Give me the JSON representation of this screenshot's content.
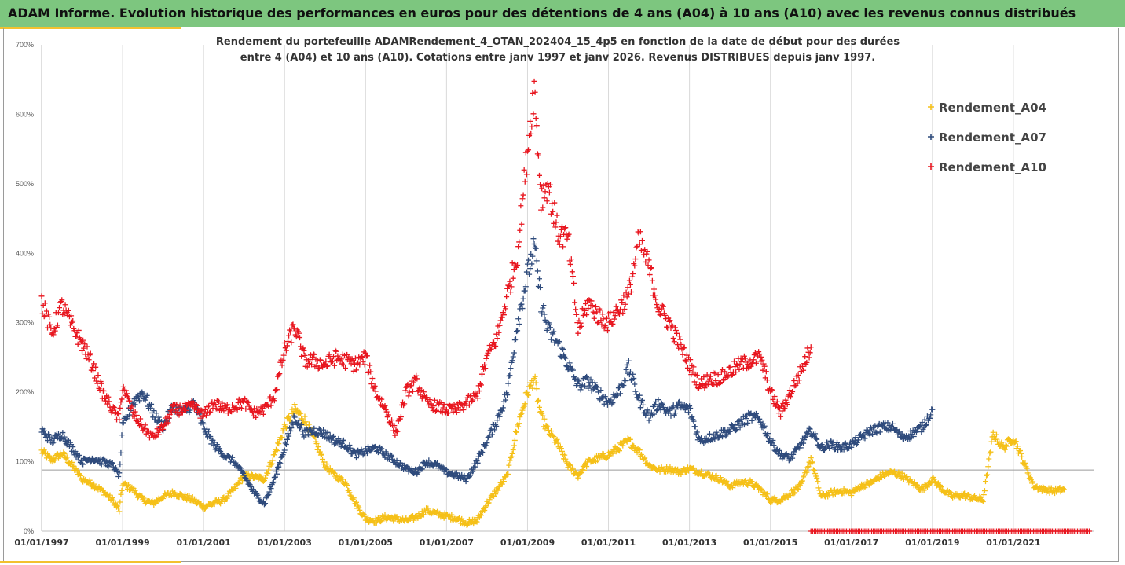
{
  "banner": {
    "title": "ADAM Informe. Evolution historique des performances en euros pour des détentions de 4 ans (A04) à 10 ans (A10) avec les revenus connus distribués"
  },
  "colors": {
    "banner": "#7dc67f",
    "accent": "#f2c12e",
    "A04": "#f5c018",
    "A07": "#2f4b7c",
    "A10": "#e8161f"
  },
  "chart_data": {
    "type": "scatter",
    "title_lines": [
      "Rendement du portefeuille ADAMRendement_4_OTAN_202404_15_4p5  en fonction de la date de début pour des durées",
      "entre 4 (A04) et 10 ans (A10). Cotations entre janv 1997 et janv 2026. Revenus DISTRIBUES depuis janv 1997."
    ],
    "xlabel": "",
    "ylabel": "",
    "x_range": [
      "01/01/1997",
      "01/01/2023"
    ],
    "x_ticks": [
      "01/01/1997",
      "01/01/1999",
      "01/01/2001",
      "01/01/2003",
      "01/01/2005",
      "01/01/2007",
      "01/01/2009",
      "01/01/2011",
      "01/01/2013",
      "01/01/2015",
      "01/01/2017",
      "01/01/2019",
      "01/01/2021"
    ],
    "y_ticks": [
      "0%",
      "100%",
      "200%",
      "300%",
      "400%",
      "500%",
      "600%",
      "700%"
    ],
    "ylim": [
      0,
      700
    ],
    "grid": "vertical",
    "legend_position": "top-right",
    "marker": "+",
    "series": [
      {
        "name": "Rendement_A04",
        "color": "#f5c018",
        "points": [
          [
            "1997-01",
            115
          ],
          [
            "1997-04",
            102
          ],
          [
            "1997-07",
            112
          ],
          [
            "1997-10",
            95
          ],
          [
            "1998-01",
            75
          ],
          [
            "1998-04",
            68
          ],
          [
            "1998-07",
            58
          ],
          [
            "1998-10",
            45
          ],
          [
            "1998-12",
            30
          ],
          [
            "1999-01",
            68
          ],
          [
            "1999-04",
            60
          ],
          [
            "1999-07",
            45
          ],
          [
            "1999-10",
            40
          ],
          [
            "2000-01",
            50
          ],
          [
            "2000-04",
            55
          ],
          [
            "2000-07",
            50
          ],
          [
            "2000-10",
            45
          ],
          [
            "2001-01",
            35
          ],
          [
            "2001-04",
            40
          ],
          [
            "2001-07",
            45
          ],
          [
            "2001-10",
            60
          ],
          [
            "2002-01",
            80
          ],
          [
            "2002-04",
            78
          ],
          [
            "2002-07",
            75
          ],
          [
            "2002-10",
            110
          ],
          [
            "2003-01",
            150
          ],
          [
            "2003-04",
            175
          ],
          [
            "2003-07",
            160
          ],
          [
            "2003-10",
            130
          ],
          [
            "2004-01",
            95
          ],
          [
            "2004-04",
            80
          ],
          [
            "2004-07",
            70
          ],
          [
            "2004-10",
            40
          ],
          [
            "2005-01",
            18
          ],
          [
            "2005-04",
            15
          ],
          [
            "2005-07",
            20
          ],
          [
            "2005-10",
            18
          ],
          [
            "2006-01",
            15
          ],
          [
            "2006-04",
            20
          ],
          [
            "2006-07",
            30
          ],
          [
            "2006-10",
            25
          ],
          [
            "2007-01",
            22
          ],
          [
            "2007-04",
            18
          ],
          [
            "2007-07",
            12
          ],
          [
            "2007-10",
            15
          ],
          [
            "2008-01",
            40
          ],
          [
            "2008-04",
            60
          ],
          [
            "2008-07",
            80
          ],
          [
            "2008-10",
            150
          ],
          [
            "2009-01",
            200
          ],
          [
            "2009-03",
            220
          ],
          [
            "2009-05",
            165
          ],
          [
            "2009-07",
            145
          ],
          [
            "2009-10",
            125
          ],
          [
            "2010-01",
            95
          ],
          [
            "2010-04",
            80
          ],
          [
            "2010-07",
            100
          ],
          [
            "2010-10",
            105
          ],
          [
            "2011-01",
            110
          ],
          [
            "2011-04",
            120
          ],
          [
            "2011-07",
            130
          ],
          [
            "2011-10",
            115
          ],
          [
            "2012-01",
            95
          ],
          [
            "2012-04",
            88
          ],
          [
            "2012-07",
            90
          ],
          [
            "2012-10",
            85
          ],
          [
            "2013-01",
            90
          ],
          [
            "2013-04",
            85
          ],
          [
            "2013-07",
            80
          ],
          [
            "2013-10",
            75
          ],
          [
            "2014-01",
            65
          ],
          [
            "2014-04",
            70
          ],
          [
            "2014-07",
            70
          ],
          [
            "2014-10",
            60
          ],
          [
            "2015-01",
            45
          ],
          [
            "2015-04",
            45
          ],
          [
            "2015-07",
            55
          ],
          [
            "2015-10",
            65
          ],
          [
            "2016-01",
            105
          ],
          [
            "2016-04",
            50
          ],
          [
            "2016-07",
            55
          ],
          [
            "2016-10",
            58
          ],
          [
            "2017-01",
            55
          ],
          [
            "2017-04",
            65
          ],
          [
            "2017-07",
            70
          ],
          [
            "2017-10",
            80
          ],
          [
            "2018-01",
            85
          ],
          [
            "2018-04",
            80
          ],
          [
            "2018-07",
            70
          ],
          [
            "2018-10",
            60
          ],
          [
            "2019-01",
            75
          ],
          [
            "2019-04",
            60
          ],
          [
            "2019-07",
            50
          ],
          [
            "2019-10",
            52
          ],
          [
            "2020-01",
            48
          ],
          [
            "2020-04",
            45
          ],
          [
            "2020-07",
            140
          ],
          [
            "2020-10",
            120
          ],
          [
            "2021-01",
            135
          ],
          [
            "2021-04",
            100
          ],
          [
            "2021-07",
            65
          ],
          [
            "2021-10",
            60
          ],
          [
            "2022-01",
            58
          ],
          [
            "2022-04",
            60
          ]
        ]
      },
      {
        "name": "Rendement_A07",
        "color": "#2f4b7c",
        "points": [
          [
            "1997-01",
            145
          ],
          [
            "1997-04",
            130
          ],
          [
            "1997-07",
            140
          ],
          [
            "1997-10",
            120
          ],
          [
            "1998-01",
            100
          ],
          [
            "1998-04",
            105
          ],
          [
            "1998-07",
            100
          ],
          [
            "1998-10",
            95
          ],
          [
            "1998-12",
            80
          ],
          [
            "1999-01",
            150
          ],
          [
            "1999-04",
            185
          ],
          [
            "1999-07",
            200
          ],
          [
            "1999-10",
            170
          ],
          [
            "2000-01",
            150
          ],
          [
            "2000-04",
            180
          ],
          [
            "2000-07",
            170
          ],
          [
            "2000-10",
            185
          ],
          [
            "2001-01",
            150
          ],
          [
            "2001-04",
            125
          ],
          [
            "2001-07",
            110
          ],
          [
            "2001-10",
            100
          ],
          [
            "2002-01",
            80
          ],
          [
            "2002-04",
            55
          ],
          [
            "2002-07",
            40
          ],
          [
            "2002-10",
            75
          ],
          [
            "2003-01",
            120
          ],
          [
            "2003-04",
            165
          ],
          [
            "2003-07",
            140
          ],
          [
            "2003-10",
            145
          ],
          [
            "2004-01",
            140
          ],
          [
            "2004-04",
            130
          ],
          [
            "2004-07",
            125
          ],
          [
            "2004-10",
            110
          ],
          [
            "2005-01",
            115
          ],
          [
            "2005-04",
            120
          ],
          [
            "2005-07",
            110
          ],
          [
            "2005-10",
            100
          ],
          [
            "2006-01",
            90
          ],
          [
            "2006-04",
            85
          ],
          [
            "2006-07",
            100
          ],
          [
            "2006-10",
            95
          ],
          [
            "2007-01",
            85
          ],
          [
            "2007-04",
            80
          ],
          [
            "2007-07",
            75
          ],
          [
            "2007-10",
            100
          ],
          [
            "2008-01",
            130
          ],
          [
            "2008-04",
            160
          ],
          [
            "2008-07",
            200
          ],
          [
            "2008-10",
            300
          ],
          [
            "2009-01",
            370
          ],
          [
            "2009-03",
            410
          ],
          [
            "2009-05",
            330
          ],
          [
            "2009-07",
            290
          ],
          [
            "2009-10",
            270
          ],
          [
            "2010-01",
            240
          ],
          [
            "2010-04",
            210
          ],
          [
            "2010-07",
            215
          ],
          [
            "2010-10",
            200
          ],
          [
            "2011-01",
            185
          ],
          [
            "2011-04",
            200
          ],
          [
            "2011-07",
            235
          ],
          [
            "2011-10",
            190
          ],
          [
            "2012-01",
            165
          ],
          [
            "2012-04",
            185
          ],
          [
            "2012-07",
            170
          ],
          [
            "2012-10",
            180
          ],
          [
            "2013-01",
            175
          ],
          [
            "2013-04",
            130
          ],
          [
            "2013-07",
            135
          ],
          [
            "2013-10",
            140
          ],
          [
            "2014-01",
            145
          ],
          [
            "2014-04",
            155
          ],
          [
            "2014-07",
            165
          ],
          [
            "2014-10",
            160
          ],
          [
            "2015-01",
            130
          ],
          [
            "2015-04",
            110
          ],
          [
            "2015-07",
            105
          ],
          [
            "2015-10",
            125
          ],
          [
            "2016-01",
            145
          ],
          [
            "2016-04",
            120
          ],
          [
            "2016-07",
            125
          ],
          [
            "2016-10",
            120
          ],
          [
            "2017-01",
            125
          ],
          [
            "2017-04",
            135
          ],
          [
            "2017-07",
            145
          ],
          [
            "2017-10",
            150
          ],
          [
            "2018-01",
            150
          ],
          [
            "2018-04",
            135
          ],
          [
            "2018-07",
            140
          ],
          [
            "2018-10",
            150
          ],
          [
            "2019-01",
            175
          ]
        ]
      },
      {
        "name": "Rendement_A10",
        "color": "#e8161f",
        "points": [
          [
            "1997-01",
            330
          ],
          [
            "1997-04",
            285
          ],
          [
            "1997-07",
            325
          ],
          [
            "1997-10",
            295
          ],
          [
            "1998-01",
            270
          ],
          [
            "1998-04",
            240
          ],
          [
            "1998-07",
            200
          ],
          [
            "1998-10",
            175
          ],
          [
            "1998-12",
            160
          ],
          [
            "1999-01",
            210
          ],
          [
            "1999-04",
            170
          ],
          [
            "1999-07",
            150
          ],
          [
            "1999-10",
            135
          ],
          [
            "2000-01",
            150
          ],
          [
            "2000-04",
            175
          ],
          [
            "2000-07",
            175
          ],
          [
            "2000-10",
            180
          ],
          [
            "2001-01",
            165
          ],
          [
            "2001-04",
            185
          ],
          [
            "2001-07",
            175
          ],
          [
            "2001-10",
            180
          ],
          [
            "2002-01",
            185
          ],
          [
            "2002-04",
            170
          ],
          [
            "2002-07",
            175
          ],
          [
            "2002-10",
            195
          ],
          [
            "2003-01",
            260
          ],
          [
            "2003-04",
            295
          ],
          [
            "2003-07",
            245
          ],
          [
            "2003-10",
            245
          ],
          [
            "2004-01",
            240
          ],
          [
            "2004-04",
            250
          ],
          [
            "2004-07",
            245
          ],
          [
            "2004-10",
            240
          ],
          [
            "2005-01",
            250
          ],
          [
            "2005-04",
            200
          ],
          [
            "2005-07",
            175
          ],
          [
            "2005-10",
            140
          ],
          [
            "2006-01",
            200
          ],
          [
            "2006-04",
            215
          ],
          [
            "2006-07",
            185
          ],
          [
            "2006-10",
            180
          ],
          [
            "2007-01",
            175
          ],
          [
            "2007-04",
            175
          ],
          [
            "2007-07",
            185
          ],
          [
            "2007-10",
            195
          ],
          [
            "2008-01",
            250
          ],
          [
            "2008-04",
            280
          ],
          [
            "2008-07",
            340
          ],
          [
            "2008-10",
            400
          ],
          [
            "2009-01",
            550
          ],
          [
            "2009-03",
            640
          ],
          [
            "2009-05",
            480
          ],
          [
            "2009-07",
            500
          ],
          [
            "2009-10",
            430
          ],
          [
            "2010-01",
            420
          ],
          [
            "2010-04",
            290
          ],
          [
            "2010-07",
            330
          ],
          [
            "2010-10",
            310
          ],
          [
            "2011-01",
            300
          ],
          [
            "2011-04",
            320
          ],
          [
            "2011-07",
            340
          ],
          [
            "2011-10",
            420
          ],
          [
            "2012-01",
            380
          ],
          [
            "2012-04",
            320
          ],
          [
            "2012-07",
            300
          ],
          [
            "2012-10",
            270
          ],
          [
            "2013-01",
            240
          ],
          [
            "2013-04",
            210
          ],
          [
            "2013-07",
            220
          ],
          [
            "2013-10",
            220
          ],
          [
            "2014-01",
            230
          ],
          [
            "2014-04",
            240
          ],
          [
            "2014-07",
            245
          ],
          [
            "2014-10",
            250
          ],
          [
            "2015-01",
            200
          ],
          [
            "2015-04",
            170
          ],
          [
            "2015-07",
            200
          ],
          [
            "2015-10",
            230
          ],
          [
            "2016-01",
            265
          ]
        ],
        "zero_run": [
          "2016-01",
          "2022-12",
          0
        ]
      }
    ]
  }
}
